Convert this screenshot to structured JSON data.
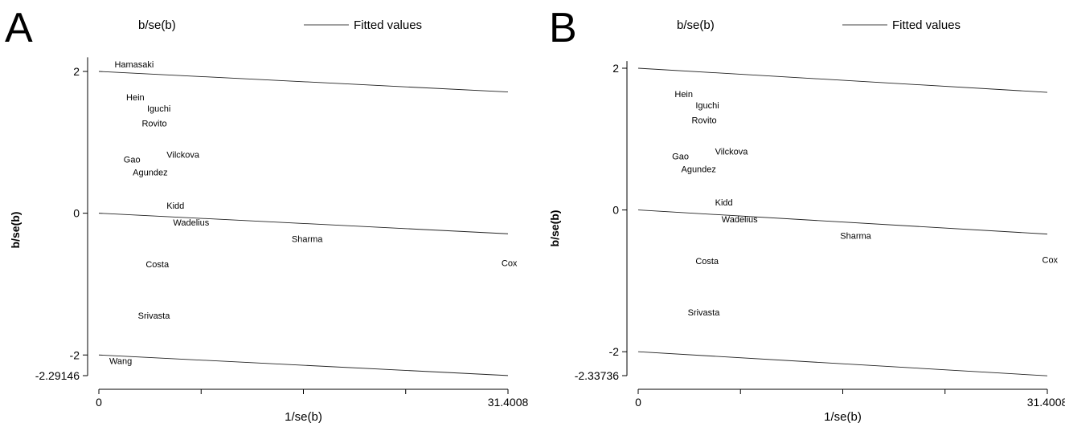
{
  "chart_data": [
    {
      "panel_label": "A",
      "type": "scatter",
      "legend": {
        "marker_label": "b/se(b)",
        "line_label": "Fitted values",
        "position": "top"
      },
      "xlabel": "1/se(b)",
      "ylabel": "b/se(b)",
      "xlim": [
        0,
        31.4008
      ],
      "ylim": [
        -2.29146,
        2.2
      ],
      "x_tick_labels": [
        "0",
        "31.4008"
      ],
      "x_minor_ticks": [
        7.85,
        15.7,
        23.55
      ],
      "y_tick_labels": [
        "2",
        "0",
        "-2",
        "-2.29146"
      ],
      "y_ticks": [
        2,
        0,
        -2,
        -2.29146
      ],
      "points": [
        {
          "label": "Hamasaki",
          "x": 1.2,
          "y": 2.1
        },
        {
          "label": "Hein",
          "x": 2.1,
          "y": 1.64
        },
        {
          "label": "Iguchi",
          "x": 3.7,
          "y": 1.48
        },
        {
          "label": "Rovito",
          "x": 3.3,
          "y": 1.27
        },
        {
          "label": "Vilckova",
          "x": 5.2,
          "y": 0.83
        },
        {
          "label": "Gao",
          "x": 1.9,
          "y": 0.76
        },
        {
          "label": "Agundez",
          "x": 2.6,
          "y": 0.58
        },
        {
          "label": "Kidd",
          "x": 5.2,
          "y": 0.11
        },
        {
          "label": "Wadelius",
          "x": 5.7,
          "y": -0.13
        },
        {
          "label": "Sharma",
          "x": 14.8,
          "y": -0.36
        },
        {
          "label": "Costa",
          "x": 3.6,
          "y": -0.72
        },
        {
          "label": "Cox",
          "x": 30.9,
          "y": -0.7
        },
        {
          "label": "Srivasta",
          "x": 3.0,
          "y": -1.44
        },
        {
          "label": "Wang",
          "x": 0.8,
          "y": -2.08
        }
      ],
      "fitted_lines": [
        {
          "x": [
            0,
            31.4008
          ],
          "y": [
            2,
            1.71
          ]
        },
        {
          "x": [
            0,
            31.4008
          ],
          "y": [
            0,
            -0.29
          ]
        },
        {
          "x": [
            0,
            31.4008
          ],
          "y": [
            -2,
            -2.29
          ]
        }
      ]
    },
    {
      "panel_label": "B",
      "type": "scatter",
      "legend": {
        "marker_label": "b/se(b)",
        "line_label": "Fitted values",
        "position": "top"
      },
      "xlabel": "1/se(b)",
      "ylabel": "b/se(b)",
      "xlim": [
        0,
        31.4008
      ],
      "ylim": [
        -2.33736,
        2.1
      ],
      "x_tick_labels": [
        "0",
        "31.4008"
      ],
      "x_minor_ticks": [
        7.85,
        15.7,
        23.55
      ],
      "y_tick_labels": [
        "2",
        "0",
        "-2",
        "-2.33736"
      ],
      "y_ticks": [
        2,
        0,
        -2,
        -2.33736
      ],
      "points": [
        {
          "label": "Hein",
          "x": 2.8,
          "y": 1.64
        },
        {
          "label": "Iguchi",
          "x": 4.4,
          "y": 1.48
        },
        {
          "label": "Rovito",
          "x": 4.1,
          "y": 1.27
        },
        {
          "label": "Vilckova",
          "x": 5.9,
          "y": 0.83
        },
        {
          "label": "Gao",
          "x": 2.6,
          "y": 0.76
        },
        {
          "label": "Agundez",
          "x": 3.3,
          "y": 0.58
        },
        {
          "label": "Kidd",
          "x": 5.9,
          "y": 0.11
        },
        {
          "label": "Wadelius",
          "x": 6.4,
          "y": -0.13
        },
        {
          "label": "Sharma",
          "x": 15.5,
          "y": -0.36
        },
        {
          "label": "Costa",
          "x": 4.4,
          "y": -0.72
        },
        {
          "label": "Cox",
          "x": 31.0,
          "y": -0.7
        },
        {
          "label": "Srivasta",
          "x": 3.8,
          "y": -1.44
        }
      ],
      "fitted_lines": [
        {
          "x": [
            0,
            31.4008
          ],
          "y": [
            2,
            1.66
          ]
        },
        {
          "x": [
            0,
            31.4008
          ],
          "y": [
            0,
            -0.34
          ]
        },
        {
          "x": [
            0,
            31.4008
          ],
          "y": [
            -2,
            -2.34
          ]
        }
      ]
    }
  ]
}
